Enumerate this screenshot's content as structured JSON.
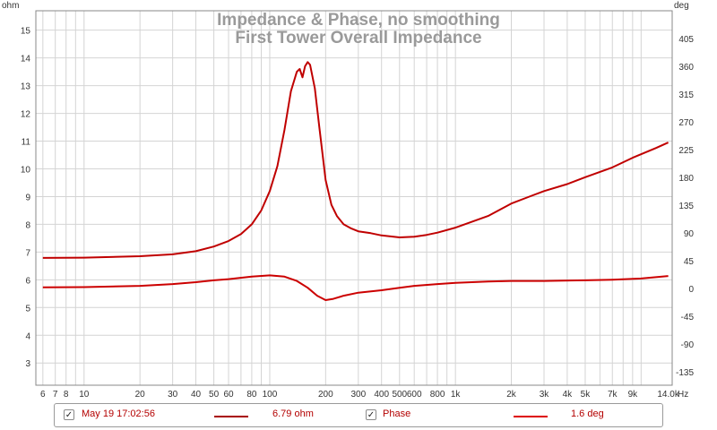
{
  "chart_data": {
    "type": "line",
    "title": "Impedance & Phase, no smoothing",
    "subtitle": "First Tower Overall Impedance",
    "x_unit": "Hz",
    "y_left_unit": "ohm",
    "y_right_unit": "deg",
    "x_scale": "log",
    "xlim": [
      5.5,
      14700
    ],
    "ylim_left": [
      2.2,
      15.7
    ],
    "ylim_right": [
      -157,
      450
    ],
    "grid": true,
    "x_ticks": [
      6,
      7,
      8,
      10,
      20,
      30,
      40,
      50,
      60,
      80,
      100,
      200,
      300,
      400,
      500,
      600,
      800,
      1000,
      2000,
      3000,
      4000,
      5000,
      7000,
      9000,
      14000
    ],
    "x_tick_labels": [
      "6",
      "7",
      "8",
      "10",
      "20",
      "30",
      "40",
      "50",
      "60",
      "80",
      "100",
      "200",
      "300",
      "400",
      "500",
      "600",
      "800",
      "1k",
      "2k",
      "3k",
      "4k",
      "5k",
      "7k",
      "9k",
      "14.0k"
    ],
    "y_left_ticks": [
      3,
      4,
      5,
      6,
      7,
      8,
      9,
      10,
      11,
      12,
      13,
      14,
      15
    ],
    "y_left_tick_labels": [
      "3",
      "4",
      "5",
      "6",
      "7",
      "8",
      "9",
      "10",
      "11",
      "12",
      "13",
      "14",
      "15"
    ],
    "y_right_ticks": [
      -135,
      -90,
      -45,
      0,
      45,
      90,
      135,
      180,
      225,
      270,
      315,
      360,
      405
    ],
    "y_right_tick_labels": [
      "-135",
      "-90",
      "-45",
      "0",
      "45",
      "90",
      "135",
      "180",
      "225",
      "270",
      "315",
      "360",
      "405"
    ],
    "series": [
      {
        "name": "May 19 17:02:56",
        "axis": "left",
        "color": "#c00000",
        "points": [
          [
            6,
            6.79
          ],
          [
            10,
            6.8
          ],
          [
            20,
            6.85
          ],
          [
            30,
            6.92
          ],
          [
            40,
            7.03
          ],
          [
            50,
            7.2
          ],
          [
            60,
            7.4
          ],
          [
            70,
            7.65
          ],
          [
            80,
            8.0
          ],
          [
            90,
            8.5
          ],
          [
            100,
            9.2
          ],
          [
            110,
            10.1
          ],
          [
            120,
            11.4
          ],
          [
            130,
            12.8
          ],
          [
            140,
            13.5
          ],
          [
            145,
            13.6
          ],
          [
            150,
            13.3
          ],
          [
            155,
            13.7
          ],
          [
            160,
            13.85
          ],
          [
            165,
            13.75
          ],
          [
            175,
            12.9
          ],
          [
            185,
            11.5
          ],
          [
            200,
            9.6
          ],
          [
            215,
            8.7
          ],
          [
            230,
            8.3
          ],
          [
            250,
            8.0
          ],
          [
            275,
            7.85
          ],
          [
            300,
            7.75
          ],
          [
            350,
            7.68
          ],
          [
            400,
            7.6
          ],
          [
            500,
            7.53
          ],
          [
            600,
            7.55
          ],
          [
            700,
            7.62
          ],
          [
            800,
            7.7
          ],
          [
            1000,
            7.88
          ],
          [
            1500,
            8.3
          ],
          [
            2000,
            8.75
          ],
          [
            2500,
            9.0
          ],
          [
            3000,
            9.2
          ],
          [
            4000,
            9.45
          ],
          [
            5000,
            9.7
          ],
          [
            7000,
            10.05
          ],
          [
            9000,
            10.4
          ],
          [
            12000,
            10.75
          ],
          [
            14000,
            10.95
          ]
        ]
      },
      {
        "name": "Phase",
        "axis": "right",
        "color": "#cc0000",
        "points": [
          [
            6,
            1.6
          ],
          [
            10,
            2
          ],
          [
            20,
            4
          ],
          [
            30,
            7
          ],
          [
            40,
            10
          ],
          [
            50,
            13
          ],
          [
            60,
            15
          ],
          [
            80,
            19
          ],
          [
            100,
            21
          ],
          [
            120,
            19
          ],
          [
            140,
            12
          ],
          [
            160,
            1
          ],
          [
            180,
            -12
          ],
          [
            200,
            -19
          ],
          [
            220,
            -17
          ],
          [
            250,
            -12
          ],
          [
            300,
            -7
          ],
          [
            400,
            -3
          ],
          [
            500,
            1
          ],
          [
            600,
            4
          ],
          [
            800,
            7
          ],
          [
            1000,
            9
          ],
          [
            1500,
            11
          ],
          [
            2000,
            12
          ],
          [
            3000,
            12
          ],
          [
            5000,
            13
          ],
          [
            7000,
            14
          ],
          [
            10000,
            16
          ],
          [
            14000,
            20
          ]
        ]
      }
    ]
  },
  "legend": {
    "entries": [
      {
        "checked": "✓",
        "label": "May 19 17:02:56",
        "value": "6.79 ohm",
        "color": "#a80000"
      },
      {
        "checked": "✓",
        "label": "Phase",
        "value": "1.6 deg",
        "color": "#dd0000"
      }
    ]
  }
}
